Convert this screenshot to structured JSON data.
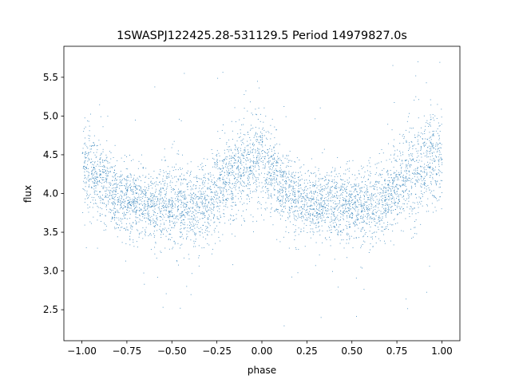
{
  "chart_data": {
    "type": "scatter",
    "title": "1SWASPJ122425.28-531129.5 Period 14979827.0s",
    "xlabel": "phase",
    "ylabel": "flux",
    "xlim": [
      -1.1,
      1.1
    ],
    "ylim": [
      2.1,
      5.9
    ],
    "x_ticks": [
      -1.0,
      -0.75,
      -0.5,
      -0.25,
      0.0,
      0.25,
      0.5,
      0.75,
      1.0
    ],
    "x_tick_labels": [
      "−1.00",
      "−0.75",
      "−0.50",
      "−0.25",
      "0.00",
      "0.25",
      "0.50",
      "0.75",
      "1.00"
    ],
    "y_ticks": [
      2.5,
      3.0,
      3.5,
      4.0,
      4.5,
      5.0,
      5.5
    ],
    "y_tick_labels": [
      "2.5",
      "3.0",
      "3.5",
      "4.0",
      "4.5",
      "5.0",
      "5.5"
    ],
    "grid": false,
    "series": [
      {
        "marker_color": "#1f77b4",
        "phase_range": [
          -1.0,
          1.0
        ],
        "profile_x": [
          -1.0,
          -0.9,
          -0.8,
          -0.7,
          -0.6,
          -0.5,
          -0.4,
          -0.3,
          -0.2,
          -0.1,
          0.0,
          0.1,
          0.2,
          0.3,
          0.4,
          0.5,
          0.6,
          0.7,
          0.8,
          0.9,
          1.0
        ],
        "profile_median": [
          4.4,
          4.2,
          3.95,
          3.9,
          3.88,
          3.87,
          3.82,
          3.9,
          4.2,
          4.35,
          4.45,
          4.1,
          3.92,
          3.88,
          3.87,
          3.85,
          3.82,
          3.95,
          4.25,
          4.4,
          4.45
        ],
        "profile_spread": [
          0.25,
          0.25,
          0.22,
          0.22,
          0.22,
          0.25,
          0.25,
          0.25,
          0.28,
          0.3,
          0.3,
          0.25,
          0.22,
          0.22,
          0.22,
          0.24,
          0.25,
          0.25,
          0.28,
          0.3,
          0.3
        ],
        "flux_min": 2.28,
        "flux_max": 5.72
      }
    ]
  }
}
